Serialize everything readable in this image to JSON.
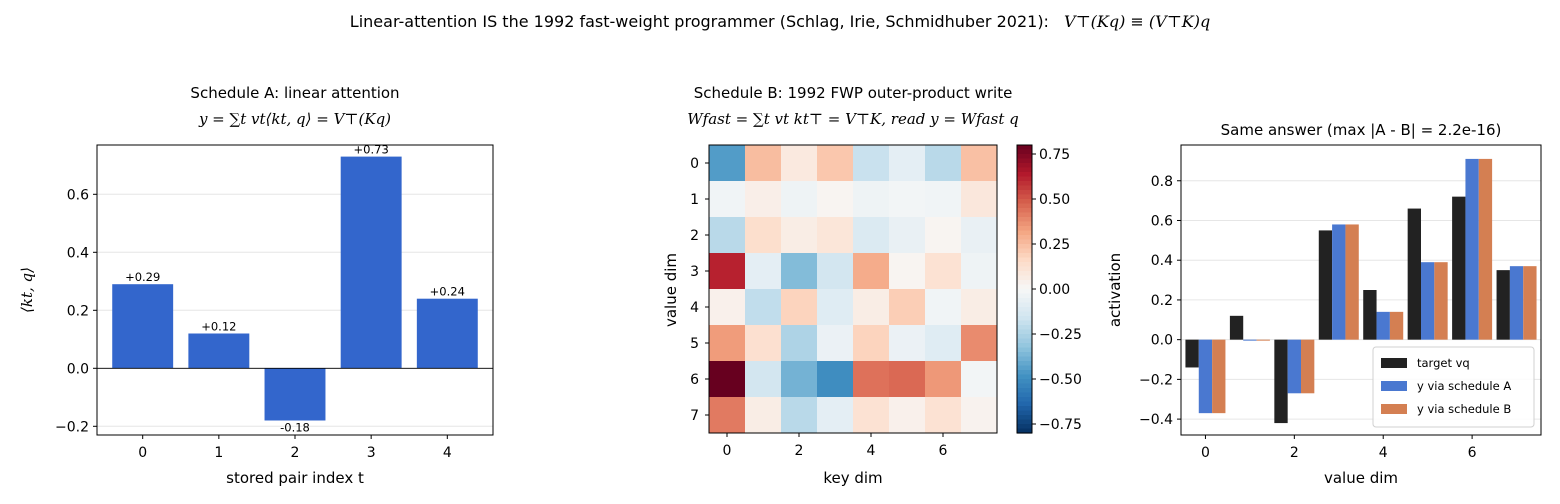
{
  "suptitle": {
    "text": "Linear-attention IS the 1992 fast-weight programmer  (Schlag, Irie, Schmidhuber 2021):",
    "formula": "V⊤(Kq) ≡ (V⊤K)q"
  },
  "chart_data": [
    {
      "id": "A",
      "type": "bar",
      "title": "Schedule A: linear attention",
      "title_formula": "y = ∑t vt⟨kt, q⟩ = V⊤(Kq)",
      "xlabel": "stored pair index t",
      "ylabel": "⟨kt, q⟩",
      "categories": [
        "0",
        "1",
        "2",
        "3",
        "4"
      ],
      "values": [
        0.29,
        0.12,
        -0.18,
        0.73,
        0.24
      ],
      "data_labels": [
        "+0.29",
        "+0.12",
        "-0.18",
        "+0.73",
        "+0.24"
      ],
      "ylim": [
        -0.23,
        0.77
      ],
      "yticks": [
        -0.2,
        0.0,
        0.2,
        0.4,
        0.6
      ],
      "ytick_labels": [
        "−0.2",
        "0.0",
        "0.2",
        "0.4",
        "0.6"
      ],
      "grid": "y",
      "color": "#3366cc"
    },
    {
      "id": "B",
      "type": "heatmap",
      "title": "Schedule B: 1992 FWP outer-product write",
      "title_formula": "Wfast = ∑t vt kt⊤ = V⊤K,  read y = Wfast q",
      "xlabel": "key dim",
      "ylabel": "value dim",
      "xticks": [
        0,
        2,
        4,
        6
      ],
      "yticks": [
        0,
        1,
        2,
        3,
        4,
        5,
        6,
        7
      ],
      "colormap": "coolwarm (RdBu_r)",
      "vmin": -0.8,
      "vmax": 0.8,
      "colorbar_ticks": [
        0.75,
        0.5,
        0.25,
        0.0,
        -0.25,
        -0.5,
        -0.75
      ],
      "colorbar_tick_labels": [
        "0.75",
        "0.50",
        "0.25",
        "0.00",
        "−0.25",
        "−0.50",
        "−0.75"
      ],
      "matrix": [
        [
          -0.45,
          0.25,
          0.08,
          0.22,
          -0.18,
          -0.08,
          -0.22,
          0.24
        ],
        [
          -0.03,
          0.05,
          -0.04,
          0.02,
          -0.04,
          -0.02,
          -0.03,
          0.09
        ],
        [
          -0.22,
          0.14,
          0.06,
          0.1,
          -0.12,
          -0.06,
          0.02,
          -0.06
        ],
        [
          0.62,
          -0.08,
          -0.35,
          -0.15,
          0.3,
          0.02,
          0.12,
          -0.04
        ],
        [
          0.04,
          -0.2,
          0.18,
          -0.1,
          0.06,
          0.2,
          -0.03,
          0.06
        ],
        [
          0.34,
          0.13,
          -0.25,
          -0.05,
          0.18,
          -0.05,
          -0.1,
          0.38
        ],
        [
          0.8,
          -0.15,
          -0.38,
          -0.5,
          0.44,
          0.46,
          0.35,
          -0.02
        ],
        [
          0.42,
          0.06,
          -0.22,
          -0.08,
          0.12,
          0.04,
          0.12,
          0.03
        ]
      ]
    },
    {
      "id": "C",
      "type": "bar",
      "title": "Same answer (max |A - B| = 2.2e-16)",
      "xlabel": "value dim",
      "ylabel": "activation",
      "categories": [
        "0",
        "1",
        "2",
        "3",
        "4",
        "5",
        "6",
        "7"
      ],
      "xtick_labels": [
        "0",
        "2",
        "4",
        "6"
      ],
      "xtick_positions": [
        0,
        2,
        4,
        6
      ],
      "ylim": [
        -0.48,
        0.98
      ],
      "yticks": [
        -0.4,
        -0.2,
        0.0,
        0.2,
        0.4,
        0.6,
        0.8
      ],
      "ytick_labels": [
        "−0.4",
        "−0.2",
        "0.0",
        "0.2",
        "0.4",
        "0.6",
        "0.8"
      ],
      "grid": "y",
      "legend_position": "lower-right",
      "series": [
        {
          "name": "target vq",
          "color": "#222222",
          "values": [
            -0.14,
            0.12,
            -0.42,
            0.55,
            0.25,
            0.66,
            0.72,
            0.35
          ]
        },
        {
          "name": "y via schedule A",
          "color": "#4a78d0",
          "values": [
            -0.37,
            -0.005,
            -0.27,
            0.58,
            0.14,
            0.39,
            0.91,
            0.37
          ]
        },
        {
          "name": "y via schedule B",
          "color": "#d47f52",
          "values": [
            -0.37,
            -0.005,
            -0.27,
            0.58,
            0.14,
            0.39,
            0.91,
            0.37
          ]
        }
      ]
    }
  ]
}
